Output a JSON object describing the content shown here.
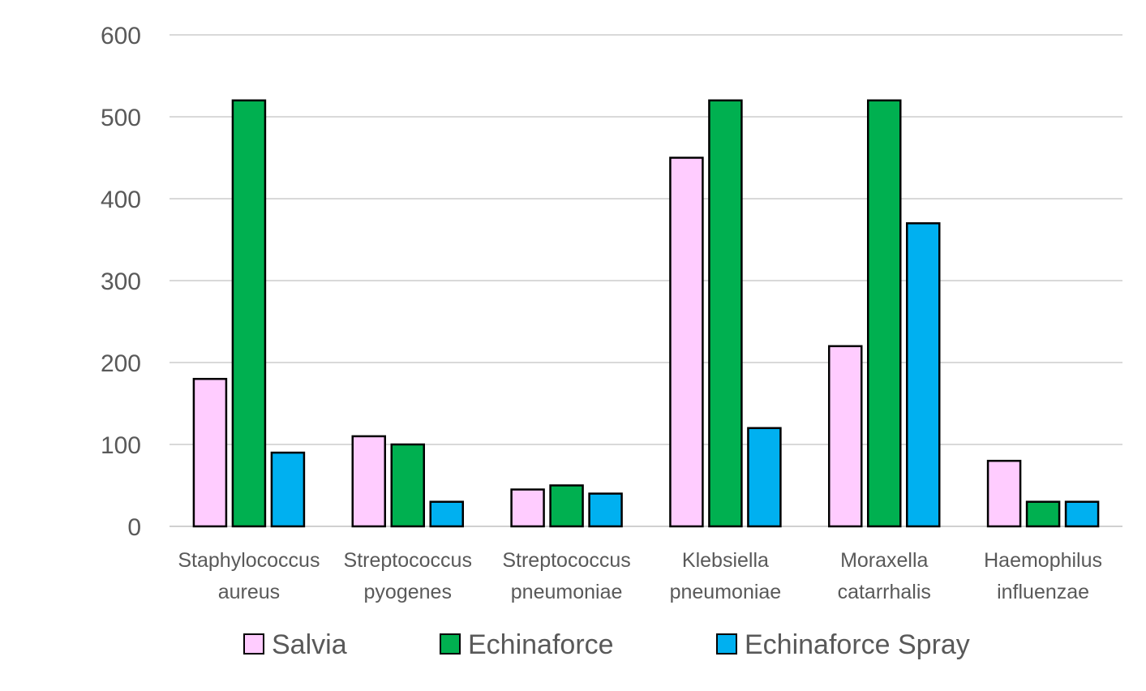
{
  "chart_data": {
    "type": "bar",
    "title": "",
    "xlabel": "",
    "ylabel": "",
    "ylim": [
      0,
      600
    ],
    "yticks": [
      0,
      100,
      200,
      300,
      400,
      500,
      600
    ],
    "grid": true,
    "legend_position": "bottom",
    "categories": [
      [
        "Staphylococcus",
        "aureus"
      ],
      [
        "Streptococcus",
        "pyogenes"
      ],
      [
        "Streptococcus",
        "pneumoniae"
      ],
      [
        "Klebsiella",
        "pneumoniae"
      ],
      [
        "Moraxella",
        "catarrhalis"
      ],
      [
        "Haemophilus",
        "influenzae"
      ]
    ],
    "series": [
      {
        "name": "Salvia",
        "color": "#ffccff",
        "values": [
          180,
          110,
          45,
          450,
          220,
          80
        ]
      },
      {
        "name": "Echinaforce",
        "color": "#00b050",
        "values": [
          520,
          100,
          50,
          520,
          520,
          30
        ]
      },
      {
        "name": "Echinaforce Spray",
        "color": "#00b0f0",
        "values": [
          90,
          30,
          40,
          120,
          370,
          30
        ]
      }
    ]
  }
}
